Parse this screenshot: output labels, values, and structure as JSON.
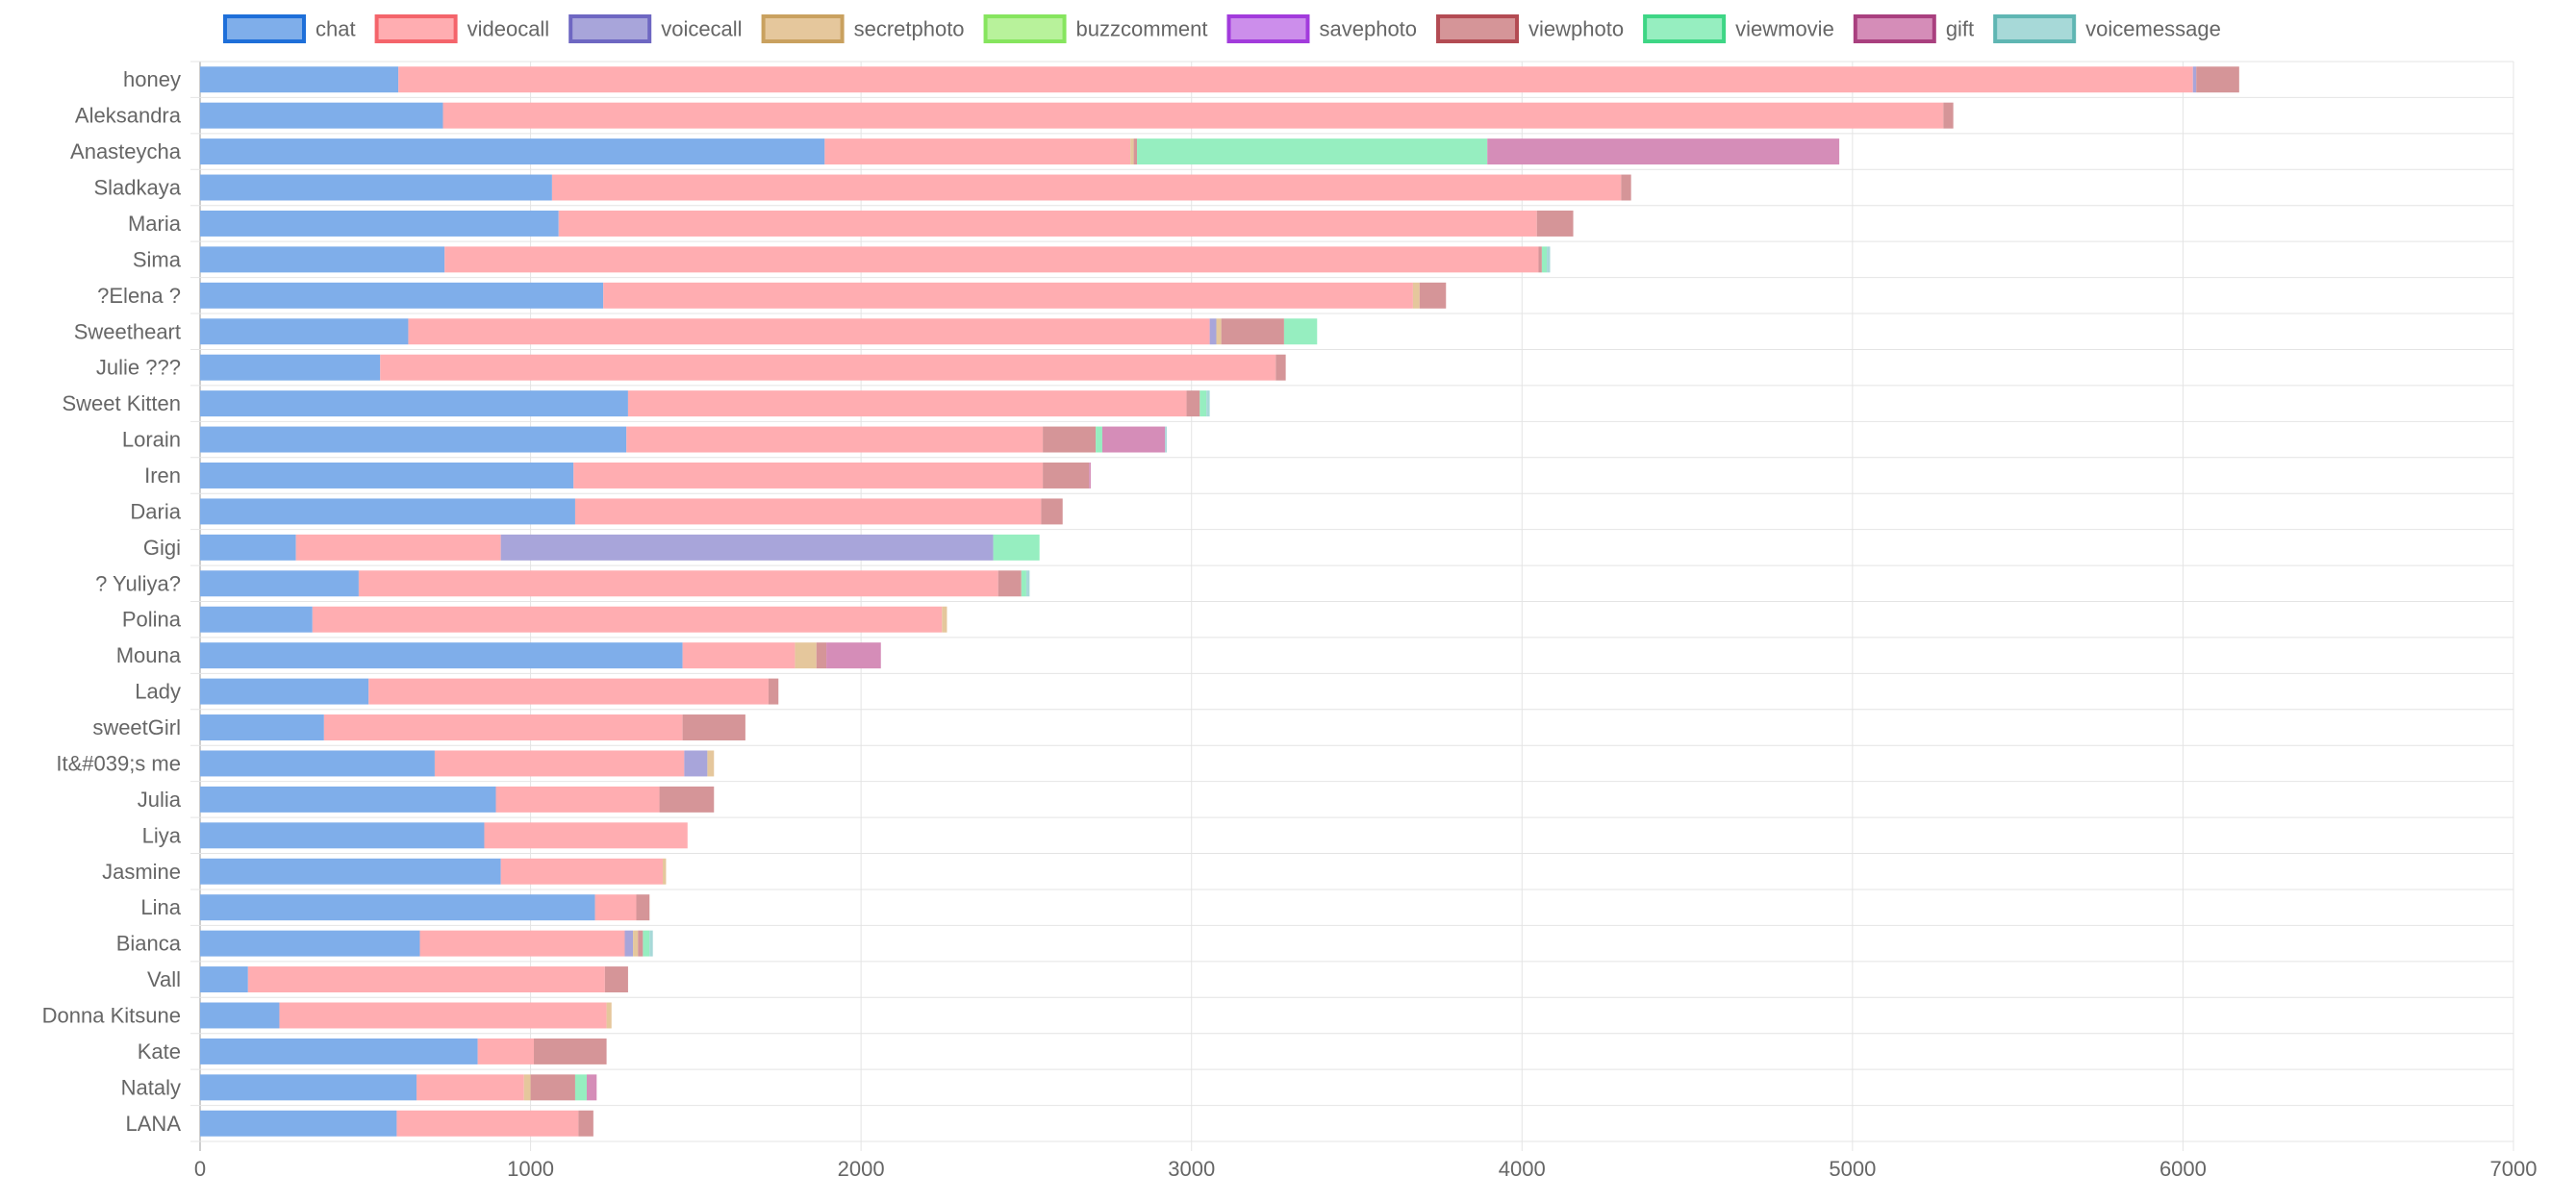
{
  "chart_data": {
    "type": "bar",
    "orientation": "horizontal",
    "stacked": true,
    "grid": true,
    "legend_position": "top",
    "xlim": [
      0,
      7000
    ],
    "x_ticks": [
      0,
      1000,
      2000,
      3000,
      4000,
      5000,
      6000,
      7000
    ],
    "categories": [
      "honey",
      "Aleksandra",
      "Anasteycha",
      "Sladkaya",
      "Maria",
      "Sima",
      "?Elena ?",
      "Sweetheart",
      "Julie ???",
      "Sweet  Kitten",
      "Lorain",
      "Iren",
      "Daria",
      "Gigi",
      "? Yuliya?",
      "Polina",
      "Mouna",
      "Lady",
      "sweetGirl",
      "It&#039;s me",
      "Julia",
      "Liya",
      "Jasmine",
      "Lina",
      "Bianca",
      "Vall",
      "Donna Kitsune",
      "Kate",
      "Nataly",
      "LANA"
    ],
    "series": [
      {
        "name": "chat",
        "color": "#7FAEEA",
        "border": "#1E6FD9",
        "values": [
          600,
          735,
          1890,
          1065,
          1085,
          740,
          1220,
          630,
          545,
          1295,
          1290,
          1130,
          1135,
          290,
          480,
          340,
          1460,
          510,
          375,
          710,
          895,
          860,
          910,
          1195,
          665,
          145,
          240,
          840,
          655,
          595
        ]
      },
      {
        "name": "videocall",
        "color": "#FFADB1",
        "border": "#F4646B",
        "values": [
          5430,
          4540,
          925,
          3235,
          2960,
          3310,
          2450,
          2425,
          2710,
          1690,
          1260,
          1420,
          1410,
          620,
          1935,
          1905,
          340,
          1210,
          1085,
          755,
          495,
          615,
          490,
          125,
          620,
          1080,
          990,
          170,
          325,
          550
        ]
      },
      {
        "name": "voicecall",
        "color": "#A8A5DA",
        "border": "#6E67C2",
        "values": [
          10,
          0,
          0,
          0,
          0,
          0,
          0,
          20,
          0,
          0,
          0,
          0,
          0,
          1490,
          0,
          0,
          0,
          0,
          0,
          70,
          0,
          0,
          0,
          0,
          25,
          0,
          0,
          0,
          0,
          0
        ]
      },
      {
        "name": "secretphoto",
        "color": "#E5C79C",
        "border": "#C9A15F",
        "values": [
          0,
          0,
          10,
          0,
          0,
          0,
          20,
          15,
          0,
          0,
          0,
          0,
          0,
          0,
          0,
          15,
          65,
          0,
          0,
          20,
          0,
          0,
          10,
          0,
          15,
          0,
          15,
          0,
          20,
          0
        ]
      },
      {
        "name": "buzzcomment",
        "color": "#B8F29B",
        "border": "#86E55E",
        "values": [
          0,
          0,
          0,
          0,
          0,
          0,
          0,
          0,
          0,
          0,
          0,
          0,
          0,
          0,
          0,
          0,
          0,
          0,
          0,
          0,
          0,
          0,
          0,
          0,
          0,
          0,
          0,
          0,
          0,
          0
        ]
      },
      {
        "name": "savephoto",
        "color": "#CC8EEB",
        "border": "#A23BDC",
        "values": [
          0,
          0,
          0,
          0,
          0,
          0,
          0,
          0,
          0,
          0,
          0,
          0,
          0,
          0,
          0,
          0,
          0,
          0,
          0,
          0,
          0,
          0,
          0,
          0,
          0,
          0,
          0,
          0,
          0,
          0
        ]
      },
      {
        "name": "viewphoto",
        "color": "#D59598",
        "border": "#B34B53",
        "values": [
          130,
          30,
          10,
          30,
          110,
          10,
          80,
          190,
          30,
          40,
          160,
          140,
          65,
          0,
          70,
          0,
          30,
          30,
          190,
          0,
          165,
          0,
          0,
          40,
          15,
          70,
          0,
          220,
          135,
          45
        ]
      },
      {
        "name": "viewmovie",
        "color": "#96EEC0",
        "border": "#3ED685",
        "values": [
          0,
          0,
          1060,
          0,
          0,
          15,
          0,
          100,
          0,
          20,
          20,
          0,
          0,
          140,
          15,
          0,
          0,
          0,
          0,
          0,
          0,
          0,
          0,
          0,
          20,
          0,
          0,
          0,
          35,
          0
        ]
      },
      {
        "name": "gift",
        "color": "#D58DB8",
        "border": "#A9407F",
        "values": [
          0,
          0,
          1065,
          0,
          0,
          0,
          0,
          0,
          0,
          0,
          190,
          5,
          0,
          0,
          0,
          0,
          165,
          0,
          0,
          0,
          0,
          0,
          0,
          0,
          0,
          0,
          0,
          0,
          30,
          0
        ]
      },
      {
        "name": "voicemessage",
        "color": "#A7D9D8",
        "border": "#5FB6B3",
        "values": [
          0,
          0,
          0,
          0,
          0,
          10,
          0,
          0,
          0,
          10,
          5,
          0,
          0,
          0,
          10,
          0,
          0,
          0,
          0,
          0,
          0,
          0,
          0,
          0,
          10,
          0,
          0,
          0,
          0,
          0
        ]
      }
    ]
  }
}
